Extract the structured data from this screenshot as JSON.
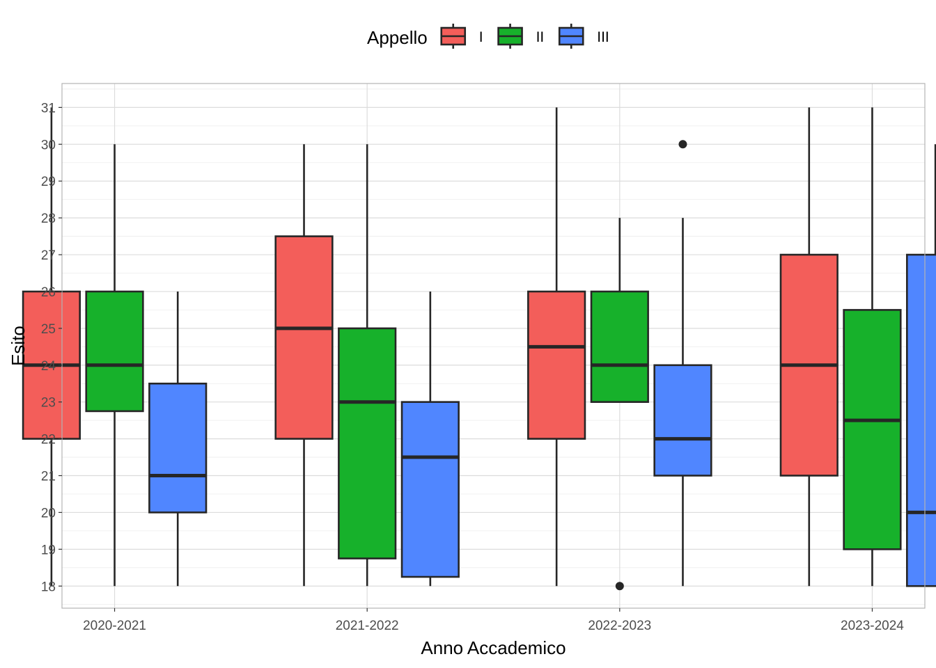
{
  "chart_data": {
    "type": "boxplot",
    "xlabel": "Anno Accademico",
    "ylabel": "Esito",
    "ylim": [
      17.4,
      31.65
    ],
    "yticks": [
      18,
      19,
      20,
      21,
      22,
      23,
      24,
      25,
      26,
      27,
      28,
      29,
      30,
      31
    ],
    "categories": [
      "2020-2021",
      "2021-2022",
      "2022-2023",
      "2023-2024"
    ],
    "legend": {
      "title": "Appello",
      "position": "top"
    },
    "grid": true,
    "series": [
      {
        "name": "I",
        "color": "#F35E5A",
        "boxes": [
          {
            "min": 18,
            "q1": 22,
            "median": 24,
            "q3": 26,
            "max": 31,
            "outliers": []
          },
          {
            "min": 18,
            "q1": 22,
            "median": 25,
            "q3": 27.5,
            "max": 30,
            "outliers": []
          },
          {
            "min": 18,
            "q1": 22,
            "median": 24.5,
            "q3": 26,
            "max": 31,
            "outliers": []
          },
          {
            "min": 18,
            "q1": 21,
            "median": 24,
            "q3": 27,
            "max": 31,
            "outliers": []
          }
        ]
      },
      {
        "name": "II",
        "color": "#17B12B",
        "boxes": [
          {
            "min": 18,
            "q1": 22.75,
            "median": 24,
            "q3": 26,
            "max": 30,
            "outliers": []
          },
          {
            "min": 18,
            "q1": 18.75,
            "median": 23,
            "q3": 25,
            "max": 30,
            "outliers": []
          },
          {
            "min": 23,
            "q1": 23,
            "median": 24,
            "q3": 26,
            "max": 28,
            "outliers": [
              18
            ]
          },
          {
            "min": 18,
            "q1": 19,
            "median": 22.5,
            "q3": 25.5,
            "max": 31,
            "outliers": []
          }
        ]
      },
      {
        "name": "III",
        "color": "#5086FF",
        "boxes": [
          {
            "min": 18,
            "q1": 20,
            "median": 21,
            "q3": 23.5,
            "max": 26,
            "outliers": []
          },
          {
            "min": 18,
            "q1": 18.25,
            "median": 21.5,
            "q3": 23,
            "max": 26,
            "outliers": []
          },
          {
            "min": 18,
            "q1": 21,
            "median": 22,
            "q3": 24,
            "max": 28,
            "outliers": [
              30
            ]
          },
          {
            "min": 18,
            "q1": 18,
            "median": 20,
            "q3": 27,
            "max": 30,
            "outliers": []
          }
        ]
      }
    ]
  }
}
